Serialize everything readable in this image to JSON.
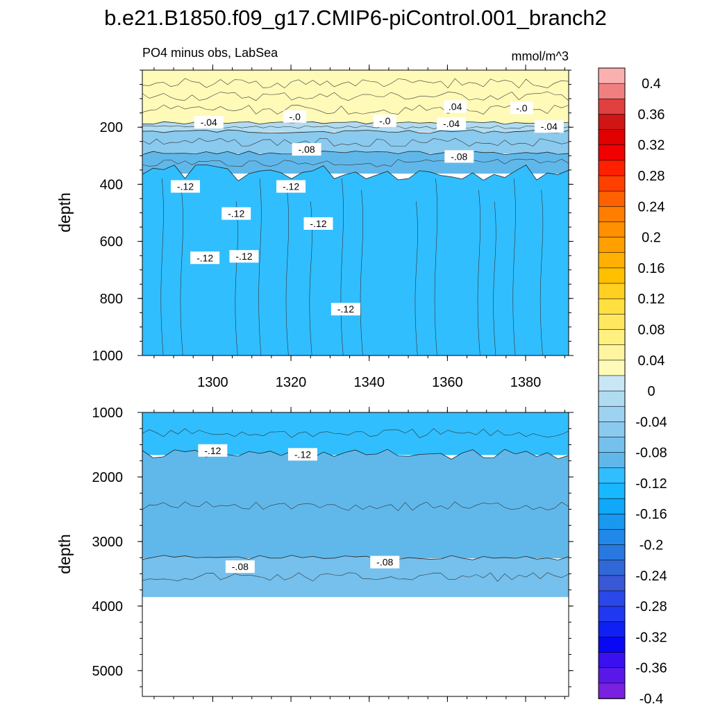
{
  "title": "b.e21.B1850.f09_g17.CMIP6-piControl.001_branch2",
  "chart_data": [
    {
      "type": "contour",
      "subtitle_left": "PO4 minus obs, LabSea",
      "subtitle_right": "mmol/m^3",
      "xlabel": "",
      "ylabel": "depth",
      "xlim": [
        1282,
        1391
      ],
      "ylim": [
        1000,
        0
      ],
      "x_ticks": [
        1300,
        1320,
        1340,
        1360,
        1380
      ],
      "x_tick_labels": [
        "1300",
        "1320",
        "1340",
        "1360",
        "1380"
      ],
      "y_ticks": [
        200,
        400,
        600,
        800,
        1000
      ],
      "y_tick_labels": [
        "200",
        "400",
        "600",
        "800",
        "1000"
      ],
      "bands": [
        {
          "value": 0.02,
          "from_depth": 0,
          "to_depth": 185
        },
        {
          "value": -0.02,
          "from_depth": 185,
          "to_depth": 215
        },
        {
          "value": -0.06,
          "from_depth": 215,
          "to_depth": 290
        },
        {
          "value": -0.1,
          "from_depth": 290,
          "to_depth": 360
        },
        {
          "value": -0.12,
          "from_depth": 360,
          "to_depth": 1000
        }
      ],
      "contour_labels": [
        {
          "text": ".04",
          "x": 1362,
          "depth": 130
        },
        {
          "text": "-.0",
          "x": 1379,
          "depth": 135
        },
        {
          "text": "-.0",
          "x": 1321,
          "depth": 165
        },
        {
          "text": "-.04",
          "x": 1299,
          "depth": 185
        },
        {
          "text": "-.0",
          "x": 1344,
          "depth": 180
        },
        {
          "text": "-.04",
          "x": 1361,
          "depth": 190
        },
        {
          "text": "-.04",
          "x": 1386,
          "depth": 200
        },
        {
          "text": "-.08",
          "x": 1324,
          "depth": 280
        },
        {
          "text": "-.08",
          "x": 1363,
          "depth": 305
        },
        {
          "text": "-.12",
          "x": 1293,
          "depth": 410
        },
        {
          "text": "-.12",
          "x": 1320,
          "depth": 410
        },
        {
          "text": "-.12",
          "x": 1306,
          "depth": 505
        },
        {
          "text": "-.12",
          "x": 1327,
          "depth": 540
        },
        {
          "text": "-.12",
          "x": 1308,
          "depth": 655
        },
        {
          "text": "-.12",
          "x": 1298,
          "depth": 660
        },
        {
          "text": "-.12",
          "x": 1334,
          "depth": 840
        }
      ]
    },
    {
      "type": "contour",
      "xlabel": "",
      "ylabel": "depth",
      "xlim": [
        1282,
        1391
      ],
      "ylim": [
        5400,
        1000
      ],
      "y_ticks": [
        1000,
        2000,
        3000,
        4000,
        5000
      ],
      "y_tick_labels": [
        "1000",
        "2000",
        "3000",
        "4000",
        "5000"
      ],
      "data_bottom_depth": 3850,
      "bands": [
        {
          "value": -0.12,
          "from_depth": 1000,
          "to_depth": 1650
        },
        {
          "value": -0.1,
          "from_depth": 1650,
          "to_depth": 3250
        },
        {
          "value": -0.08,
          "from_depth": 3250,
          "to_depth": 3850
        }
      ],
      "contour_labels": [
        {
          "text": "-.12",
          "x": 1300,
          "depth": 1600
        },
        {
          "text": "-.12",
          "x": 1323,
          "depth": 1660
        },
        {
          "text": "-.08",
          "x": 1307,
          "depth": 3400
        },
        {
          "text": "-.08",
          "x": 1344,
          "depth": 3330
        }
      ]
    }
  ],
  "colorbar": {
    "labels": [
      "0.4",
      "0.36",
      "0.32",
      "0.28",
      "0.24",
      "0.2",
      "0.16",
      "0.12",
      "0.08",
      "0.04",
      "0",
      "-0.04",
      "-0.08",
      "-0.12",
      "-0.16",
      "-0.2",
      "-0.24",
      "-0.28",
      "-0.32",
      "-0.36",
      "-0.4"
    ],
    "colors": [
      "#fbb0b0",
      "#f08080",
      "#e04040",
      "#d01515",
      "#e00000",
      "#f00000",
      "#ff2000",
      "#ff4000",
      "#ff6000",
      "#ff7d00",
      "#ff9000",
      "#ffa000",
      "#ffb000",
      "#ffc000",
      "#ffd020",
      "#ffe040",
      "#ffe860",
      "#fff080",
      "#fff5a0",
      "#fffab8",
      "#c8e6f5",
      "#b0dcf2",
      "#9dd3f0",
      "#8acaee",
      "#75c0ec",
      "#60b8ea",
      "#30beff",
      "#18b8ff",
      "#10a8f8",
      "#1898ef",
      "#2088e8",
      "#2878e0",
      "#3068d8",
      "#3858d5",
      "#2a48e8",
      "#2038f0",
      "#1020f5",
      "#0808f5",
      "#3a10f0",
      "#5a18e8",
      "#7a20e0"
    ]
  }
}
